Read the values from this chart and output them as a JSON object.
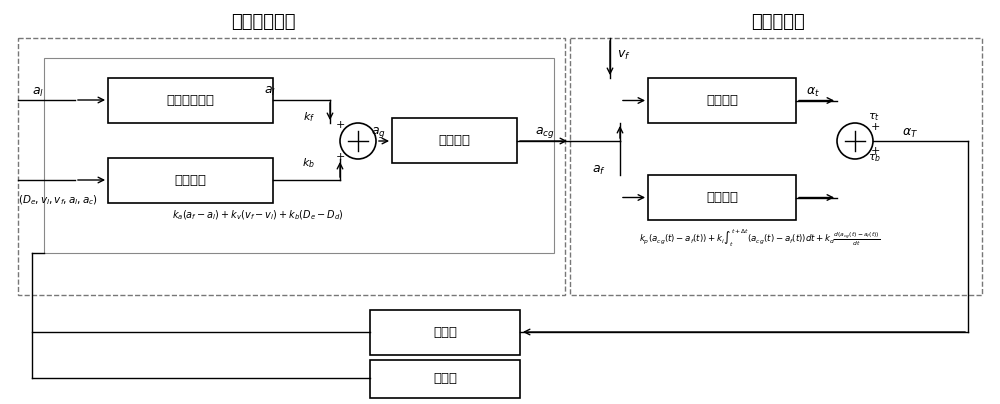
{
  "title_left": "加速度规划层",
  "title_right": "车速控制层",
  "box_brake_feedforward": "制动踏板前馈",
  "box_error_feedback_left": "误差反馈",
  "box_limit": "限值判定",
  "box_lookup": "查表模型",
  "box_error_feedback_right": "误差反馈",
  "box_following": "跟随车",
  "box_leading": "前导车",
  "bg_color": "#ffffff"
}
